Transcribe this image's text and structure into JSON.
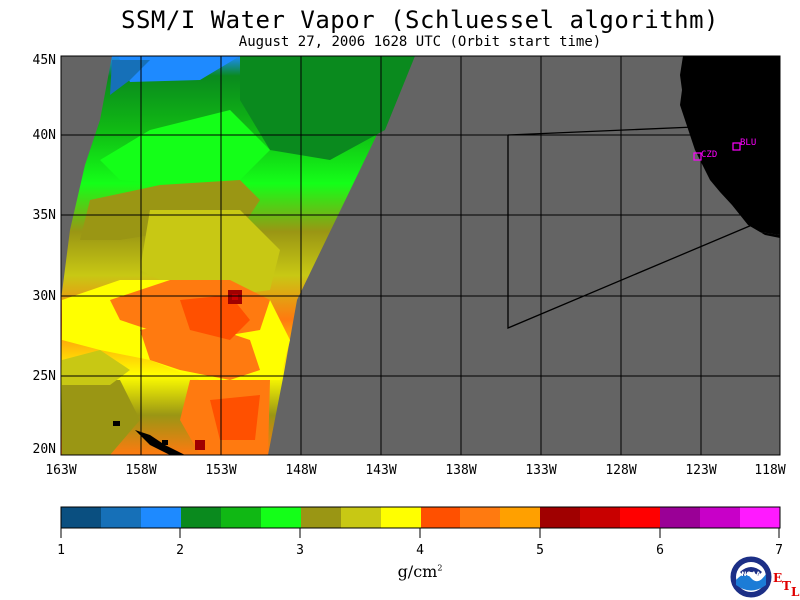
{
  "title": "SSM/I Water Vapor (Schluessel algorithm)",
  "subtitle": "August 27, 2006  1628 UTC  (Orbit start time)",
  "lat_labels": [
    "45N",
    "40N",
    "35N",
    "30N",
    "25N",
    "20N"
  ],
  "lon_labels": [
    "163W",
    "158W",
    "153W",
    "148W",
    "143W",
    "138W",
    "133W",
    "128W",
    "123W",
    "118W"
  ],
  "stations": [
    "CZD",
    "BLU"
  ],
  "colorbar": {
    "ticks": [
      "1",
      "2",
      "3",
      "4",
      "5",
      "6",
      "7"
    ],
    "units": "g/cm",
    "units_exp": "2",
    "colors": [
      "#0a4f80",
      "#1670b8",
      "#1e8aff",
      "#0a8a1e",
      "#10b814",
      "#14ff18",
      "#9a9614",
      "#c8c814",
      "#ffff00",
      "#ff5000",
      "#ff7a10",
      "#ffa000",
      "#a00000",
      "#c80000",
      "#ff0000",
      "#9a0096",
      "#c800c8",
      "#ff1aff"
    ]
  },
  "logo": {
    "text": "NOAA",
    "etl": [
      "E",
      "T",
      "L"
    ]
  },
  "colors": {
    "land": "#000000",
    "no_data": "#646464",
    "station": "#ff00ff"
  }
}
